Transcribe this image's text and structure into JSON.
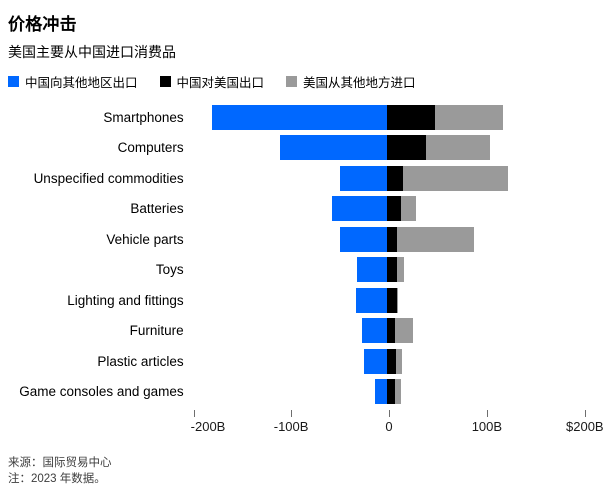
{
  "header": {
    "title": "价格冲击",
    "subtitle": "美国主要从中国进口消费品"
  },
  "colors": {
    "china_other_exports": "#0068ff",
    "china_us_exports": "#000000",
    "us_other_imports": "#9a9a9a"
  },
  "chart_data": {
    "type": "bar",
    "orientation": "horizontal-diverging-stacked",
    "unit": "USD billions",
    "title": "价格冲击",
    "subtitle": "美国主要从中国进口消费品",
    "legend_position": "top",
    "grid": false,
    "xlim": [
      -200,
      230
    ],
    "categories": [
      "Smartphones",
      "Computers",
      "Unspecified commodities",
      "Batteries",
      "Vehicle parts",
      "Toys",
      "Lighting and fittings",
      "Furniture",
      "Plastic articles",
      "Game consoles and games"
    ],
    "series": [
      {
        "name": "中国向其他地区出口",
        "color": "#0068ff",
        "side": "left",
        "values": [
          -178,
          -109,
          -48,
          -56,
          -48,
          -30,
          -31,
          -25,
          -23,
          -12
        ]
      },
      {
        "name": "中国对美国出口",
        "color": "#000000",
        "side": "right",
        "values": [
          49,
          40,
          17,
          15,
          11,
          11,
          11,
          9,
          10,
          9
        ]
      },
      {
        "name": "美国从其他地方进口",
        "color": "#9a9a9a",
        "side": "right-stacked",
        "values": [
          70,
          66,
          107,
          15,
          78,
          7,
          1,
          18,
          6,
          6
        ]
      }
    ],
    "x_ticks": [
      {
        "value": -200,
        "label": "-200B"
      },
      {
        "value": -100,
        "label": "-100B"
      },
      {
        "value": 0,
        "label": "0"
      },
      {
        "value": 100,
        "label": "100B"
      },
      {
        "value": 200,
        "label": "$200B"
      }
    ]
  },
  "footer": {
    "source": "来源：国际贸易中心",
    "note": "注：2023 年数据。"
  }
}
